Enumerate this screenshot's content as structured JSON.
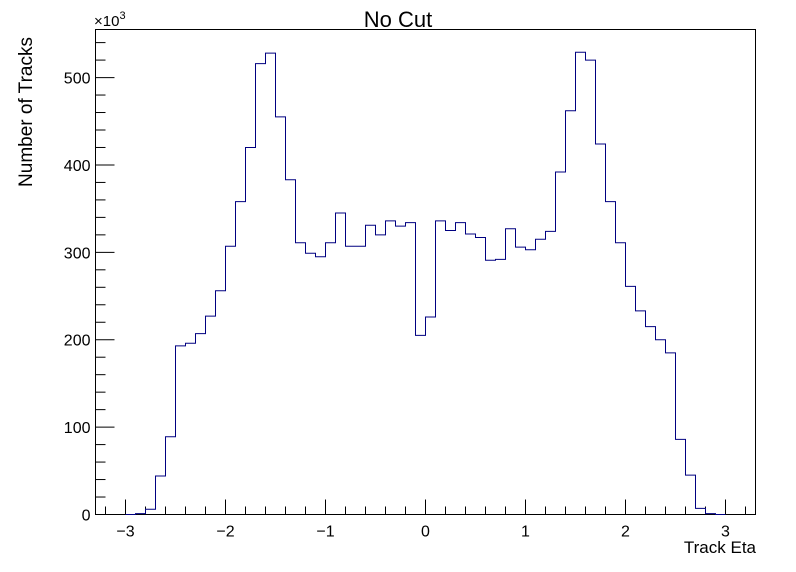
{
  "chart_data": {
    "type": "histogram",
    "title": "No Cut",
    "xlabel": "Track Eta",
    "ylabel": "Number of Tracks",
    "y_exponent_label": "×10",
    "y_exponent_power": "3",
    "xlim": [
      -3.3,
      3.3
    ],
    "ylim": [
      0,
      555
    ],
    "x_ticks": [
      -3,
      -2,
      -1,
      0,
      1,
      2,
      3
    ],
    "x_tick_labels": [
      "−3",
      "−2",
      "−1",
      "0",
      "1",
      "2",
      "3"
    ],
    "y_ticks": [
      0,
      100,
      200,
      300,
      400,
      500
    ],
    "y_tick_labels": [
      "0",
      "100",
      "200",
      "300",
      "400",
      "500"
    ],
    "bin_width": 0.1,
    "bin_start": -3.0,
    "values": [
      0,
      1,
      6,
      44,
      89,
      193,
      196,
      207,
      227,
      256,
      307,
      358,
      420,
      516,
      528,
      455,
      383,
      311,
      299,
      295,
      311,
      345,
      307,
      307,
      331,
      320,
      336,
      330,
      334,
      205,
      226,
      336,
      325,
      334,
      321,
      317,
      291,
      292,
      327,
      306,
      303,
      315,
      324,
      392,
      462,
      529,
      520,
      424,
      358,
      311,
      261,
      233,
      215,
      200,
      185,
      86,
      45,
      7,
      1,
      0
    ],
    "line_color": "#000080",
    "grid": false
  }
}
